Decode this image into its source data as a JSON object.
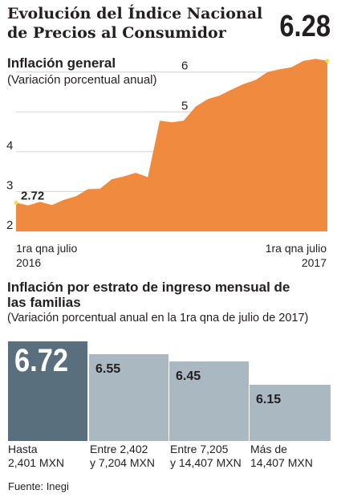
{
  "header": {
    "title": "Evolución del Índice Nacional de Precios al Consumidor",
    "latest_value": "6.28"
  },
  "chart_data": [
    {
      "type": "area",
      "title": "Inflación general",
      "subtitle": "(Variación porcentual anual)",
      "x_labels": [
        "1ra qna julio 2016",
        "1ra qna julio 2017"
      ],
      "ylim": [
        2,
        6.7
      ],
      "y_ticks": [
        "2",
        "3",
        "4",
        "5",
        "6"
      ],
      "series": [
        {
          "values": [
            2.72,
            2.65,
            2.74,
            2.66,
            2.79,
            2.88,
            3.06,
            3.07,
            3.31,
            3.38,
            3.47,
            3.36,
            4.78,
            4.74,
            4.78,
            5.13,
            5.32,
            5.41,
            5.56,
            5.7,
            5.8,
            6.0,
            6.07,
            6.12,
            6.28,
            6.33,
            6.28
          ],
          "start_label": "2.72",
          "color": "#f08a3e"
        }
      ]
    },
    {
      "type": "bar",
      "title": "Inflación por estrato de ingreso mensual de las familias",
      "subtitle": "(Variación porcentual anual en la 1ra qna de julio de 2017)",
      "categories": [
        "Hasta 2,401 MXN",
        "Entre 2,402 y 7,204 MXN",
        "Entre 7,205 y 14,407 MXN",
        "Más de 14,407 MXN"
      ],
      "values": [
        6.72,
        6.55,
        6.45,
        6.15
      ],
      "value_labels": [
        "6.72",
        "6.55",
        "6.45",
        "6.15"
      ],
      "colors": [
        "#5a6f7d",
        "#aab8c1",
        "#aab8c1",
        "#aab8c1"
      ]
    }
  ],
  "labels": {
    "x_left_line1": "1ra qna julio",
    "x_left_line2": "2016",
    "x_right_line1": "1ra qna julio",
    "x_right_line2": "2017",
    "cat1_line1": "Hasta",
    "cat1_line2": "2,401 MXN",
    "cat2_line1": "Entre 2,402",
    "cat2_line2": "y 7,204 MXN",
    "cat3_line1": "Entre 7,205",
    "cat3_line2": "y 14,407 MXN",
    "cat4_line1": "Más de",
    "cat4_line2": "14,407 MXN"
  },
  "source": "Fuente: Inegi"
}
